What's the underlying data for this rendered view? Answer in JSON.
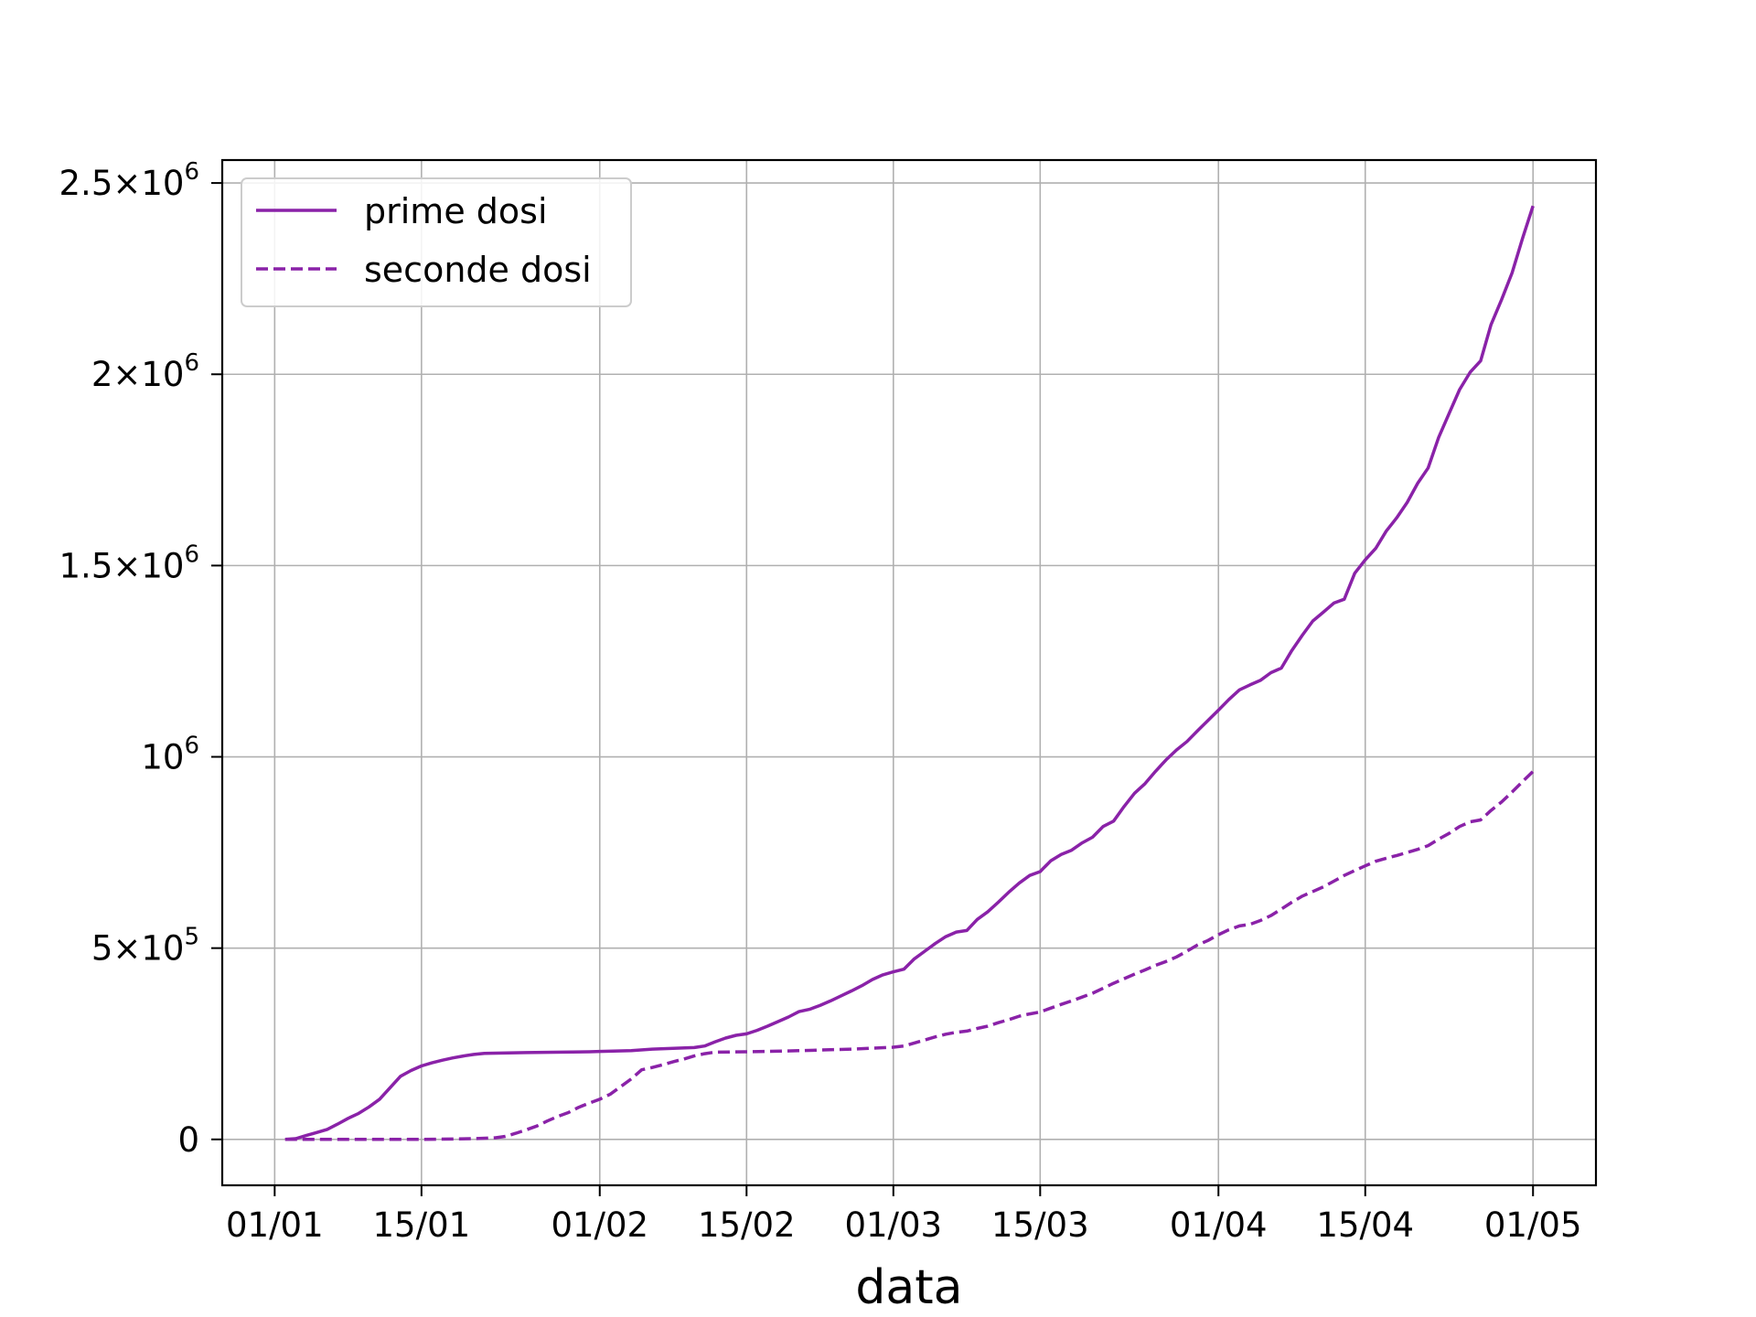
{
  "chart_data": {
    "type": "line",
    "title": "",
    "xlabel": "data",
    "ylabel": "",
    "x_ticks": [
      {
        "date": "2021-01-01",
        "label": "01/01"
      },
      {
        "date": "2021-01-15",
        "label": "15/01"
      },
      {
        "date": "2021-02-01",
        "label": "01/02"
      },
      {
        "date": "2021-02-15",
        "label": "15/02"
      },
      {
        "date": "2021-03-01",
        "label": "01/03"
      },
      {
        "date": "2021-03-15",
        "label": "15/03"
      },
      {
        "date": "2021-04-01",
        "label": "01/04"
      },
      {
        "date": "2021-04-15",
        "label": "15/04"
      },
      {
        "date": "2021-05-01",
        "label": "01/05"
      }
    ],
    "y_ticks": [
      {
        "value": 0,
        "base": "0",
        "exp": ""
      },
      {
        "value": 500000,
        "base": "5×10",
        "exp": "5"
      },
      {
        "value": 1000000,
        "base": "10",
        "exp": "6"
      },
      {
        "value": 1500000,
        "base": "1.5×10",
        "exp": "6"
      },
      {
        "value": 2000000,
        "base": "2×10",
        "exp": "6"
      },
      {
        "value": 2500000,
        "base": "2.5×10",
        "exp": "6"
      }
    ],
    "xlim": [
      "2020-12-27",
      "2021-05-07"
    ],
    "ylim": [
      -120000,
      2560000
    ],
    "grid": true,
    "legend_position": "top-left",
    "color": "#8a22a8",
    "series": [
      {
        "name": "prime dosi",
        "style": "solid",
        "points": [
          [
            "2021-01-02",
            0
          ],
          [
            "2021-01-03",
            2000
          ],
          [
            "2021-01-04",
            10000
          ],
          [
            "2021-01-05",
            18000
          ],
          [
            "2021-01-06",
            26000
          ],
          [
            "2021-01-07",
            40000
          ],
          [
            "2021-01-08",
            55000
          ],
          [
            "2021-01-09",
            68000
          ],
          [
            "2021-01-10",
            85000
          ],
          [
            "2021-01-11",
            105000
          ],
          [
            "2021-01-12",
            135000
          ],
          [
            "2021-01-13",
            165000
          ],
          [
            "2021-01-14",
            180000
          ],
          [
            "2021-01-15",
            192000
          ],
          [
            "2021-01-16",
            200000
          ],
          [
            "2021-01-17",
            207000
          ],
          [
            "2021-01-18",
            213000
          ],
          [
            "2021-01-19",
            218000
          ],
          [
            "2021-01-20",
            222000
          ],
          [
            "2021-01-21",
            225000
          ],
          [
            "2021-01-25",
            227000
          ],
          [
            "2021-01-31",
            229000
          ],
          [
            "2021-02-01",
            230000
          ],
          [
            "2021-02-04",
            232000
          ],
          [
            "2021-02-06",
            236000
          ],
          [
            "2021-02-08",
            238000
          ],
          [
            "2021-02-10",
            240000
          ],
          [
            "2021-02-11",
            244000
          ],
          [
            "2021-02-12",
            255000
          ],
          [
            "2021-02-13",
            265000
          ],
          [
            "2021-02-14",
            272000
          ],
          [
            "2021-02-15",
            276000
          ],
          [
            "2021-02-16",
            285000
          ],
          [
            "2021-02-17",
            296000
          ],
          [
            "2021-02-18",
            308000
          ],
          [
            "2021-02-19",
            320000
          ],
          [
            "2021-02-20",
            334000
          ],
          [
            "2021-02-21",
            340000
          ],
          [
            "2021-02-22",
            350000
          ],
          [
            "2021-02-23",
            362000
          ],
          [
            "2021-02-24",
            375000
          ],
          [
            "2021-02-25",
            388000
          ],
          [
            "2021-02-26",
            402000
          ],
          [
            "2021-02-27",
            418000
          ],
          [
            "2021-02-28",
            430000
          ],
          [
            "2021-03-01",
            438000
          ],
          [
            "2021-03-02",
            445000
          ],
          [
            "2021-03-03",
            472000
          ],
          [
            "2021-03-04",
            492000
          ],
          [
            "2021-03-05",
            512000
          ],
          [
            "2021-03-06",
            530000
          ],
          [
            "2021-03-07",
            542000
          ],
          [
            "2021-03-08",
            546000
          ],
          [
            "2021-03-09",
            575000
          ],
          [
            "2021-03-10",
            595000
          ],
          [
            "2021-03-11",
            620000
          ],
          [
            "2021-03-12",
            646000
          ],
          [
            "2021-03-13",
            670000
          ],
          [
            "2021-03-14",
            690000
          ],
          [
            "2021-03-15",
            700000
          ],
          [
            "2021-03-16",
            728000
          ],
          [
            "2021-03-17",
            745000
          ],
          [
            "2021-03-18",
            756000
          ],
          [
            "2021-03-19",
            775000
          ],
          [
            "2021-03-20",
            790000
          ],
          [
            "2021-03-21",
            818000
          ],
          [
            "2021-03-22",
            832000
          ],
          [
            "2021-03-23",
            870000
          ],
          [
            "2021-03-24",
            905000
          ],
          [
            "2021-03-25",
            930000
          ],
          [
            "2021-03-26",
            962000
          ],
          [
            "2021-03-27",
            992000
          ],
          [
            "2021-03-28",
            1018000
          ],
          [
            "2021-03-29",
            1040000
          ],
          [
            "2021-03-30",
            1068000
          ],
          [
            "2021-03-31",
            1095000
          ],
          [
            "2021-04-01",
            1122000
          ],
          [
            "2021-04-02",
            1150000
          ],
          [
            "2021-04-03",
            1175000
          ],
          [
            "2021-04-04",
            1188000
          ],
          [
            "2021-04-05",
            1200000
          ],
          [
            "2021-04-06",
            1220000
          ],
          [
            "2021-04-07",
            1232000
          ],
          [
            "2021-04-08",
            1278000
          ],
          [
            "2021-04-09",
            1318000
          ],
          [
            "2021-04-10",
            1355000
          ],
          [
            "2021-04-11",
            1378000
          ],
          [
            "2021-04-12",
            1402000
          ],
          [
            "2021-04-13",
            1412000
          ],
          [
            "2021-04-14",
            1480000
          ],
          [
            "2021-04-15",
            1515000
          ],
          [
            "2021-04-16",
            1545000
          ],
          [
            "2021-04-17",
            1590000
          ],
          [
            "2021-04-18",
            1625000
          ],
          [
            "2021-04-19",
            1665000
          ],
          [
            "2021-04-20",
            1715000
          ],
          [
            "2021-04-21",
            1755000
          ],
          [
            "2021-04-22",
            1835000
          ],
          [
            "2021-04-23",
            1898000
          ],
          [
            "2021-04-24",
            1960000
          ],
          [
            "2021-04-25",
            2005000
          ],
          [
            "2021-04-26",
            2035000
          ],
          [
            "2021-04-27",
            2130000
          ],
          [
            "2021-04-28",
            2195000
          ],
          [
            "2021-04-29",
            2265000
          ],
          [
            "2021-04-30",
            2355000
          ],
          [
            "2021-05-01",
            2440000
          ]
        ]
      },
      {
        "name": "seconde dosi",
        "style": "dashed",
        "points": [
          [
            "2021-01-02",
            0
          ],
          [
            "2021-01-10",
            0
          ],
          [
            "2021-01-15",
            0
          ],
          [
            "2021-01-18",
            1000
          ],
          [
            "2021-01-20",
            2000
          ],
          [
            "2021-01-22",
            4000
          ],
          [
            "2021-01-23",
            8000
          ],
          [
            "2021-01-24",
            16000
          ],
          [
            "2021-01-25",
            25000
          ],
          [
            "2021-01-26",
            35000
          ],
          [
            "2021-01-27",
            48000
          ],
          [
            "2021-01-28",
            60000
          ],
          [
            "2021-01-29",
            70000
          ],
          [
            "2021-01-30",
            84000
          ],
          [
            "2021-01-31",
            95000
          ],
          [
            "2021-02-01",
            105000
          ],
          [
            "2021-02-02",
            118000
          ],
          [
            "2021-02-03",
            138000
          ],
          [
            "2021-02-04",
            158000
          ],
          [
            "2021-02-05",
            182000
          ],
          [
            "2021-02-06",
            188000
          ],
          [
            "2021-02-07",
            195000
          ],
          [
            "2021-02-08",
            203000
          ],
          [
            "2021-02-09",
            210000
          ],
          [
            "2021-02-10",
            218000
          ],
          [
            "2021-02-11",
            224000
          ],
          [
            "2021-02-12",
            228000
          ],
          [
            "2021-02-15",
            229000
          ],
          [
            "2021-02-20",
            232000
          ],
          [
            "2021-02-25",
            236000
          ],
          [
            "2021-03-01",
            241000
          ],
          [
            "2021-03-02",
            244000
          ],
          [
            "2021-03-03",
            252000
          ],
          [
            "2021-03-04",
            260000
          ],
          [
            "2021-03-05",
            268000
          ],
          [
            "2021-03-06",
            275000
          ],
          [
            "2021-03-07",
            280000
          ],
          [
            "2021-03-08",
            283000
          ],
          [
            "2021-03-09",
            290000
          ],
          [
            "2021-03-10",
            296000
          ],
          [
            "2021-03-11",
            305000
          ],
          [
            "2021-03-12",
            313000
          ],
          [
            "2021-03-13",
            322000
          ],
          [
            "2021-03-14",
            328000
          ],
          [
            "2021-03-15",
            333000
          ],
          [
            "2021-03-16",
            343000
          ],
          [
            "2021-03-17",
            353000
          ],
          [
            "2021-03-18",
            362000
          ],
          [
            "2021-03-19",
            372000
          ],
          [
            "2021-03-20",
            382000
          ],
          [
            "2021-03-21",
            395000
          ],
          [
            "2021-03-22",
            408000
          ],
          [
            "2021-03-23",
            420000
          ],
          [
            "2021-03-24",
            432000
          ],
          [
            "2021-03-25",
            443000
          ],
          [
            "2021-03-26",
            455000
          ],
          [
            "2021-03-27",
            465000
          ],
          [
            "2021-03-28",
            477000
          ],
          [
            "2021-03-29",
            492000
          ],
          [
            "2021-03-30",
            508000
          ],
          [
            "2021-03-31",
            520000
          ],
          [
            "2021-04-01",
            535000
          ],
          [
            "2021-04-02",
            548000
          ],
          [
            "2021-04-03",
            558000
          ],
          [
            "2021-04-04",
            562000
          ],
          [
            "2021-04-05",
            572000
          ],
          [
            "2021-04-06",
            585000
          ],
          [
            "2021-04-07",
            602000
          ],
          [
            "2021-04-08",
            620000
          ],
          [
            "2021-04-09",
            636000
          ],
          [
            "2021-04-10",
            648000
          ],
          [
            "2021-04-11",
            660000
          ],
          [
            "2021-04-12",
            675000
          ],
          [
            "2021-04-13",
            690000
          ],
          [
            "2021-04-14",
            703000
          ],
          [
            "2021-04-15",
            715000
          ],
          [
            "2021-04-16",
            727000
          ],
          [
            "2021-04-17",
            735000
          ],
          [
            "2021-04-18",
            742000
          ],
          [
            "2021-04-19",
            750000
          ],
          [
            "2021-04-20",
            758000
          ],
          [
            "2021-04-21",
            768000
          ],
          [
            "2021-04-22",
            785000
          ],
          [
            "2021-04-23",
            800000
          ],
          [
            "2021-04-24",
            818000
          ],
          [
            "2021-04-25",
            830000
          ],
          [
            "2021-04-26",
            835000
          ],
          [
            "2021-04-27",
            860000
          ],
          [
            "2021-04-28",
            882000
          ],
          [
            "2021-04-29",
            908000
          ],
          [
            "2021-04-30",
            935000
          ],
          [
            "2021-05-01",
            962000
          ]
        ]
      }
    ]
  }
}
